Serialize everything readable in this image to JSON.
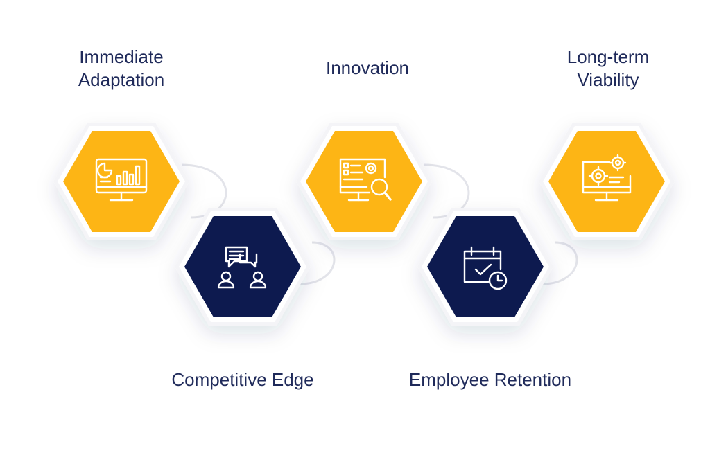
{
  "colors": {
    "accent": "#FDB515",
    "navy": "#0D1A4F",
    "text": "#1F2A5A",
    "connector": "#E3E4EA",
    "halo": "#F4F4F7"
  },
  "steps": [
    {
      "lines": [
        "Immediate",
        "Adaptation"
      ],
      "icon": "analytics-monitor-icon",
      "color": "accent"
    },
    {
      "lines": [
        "Competitive Edge"
      ],
      "icon": "discussion-people-icon",
      "color": "navy"
    },
    {
      "lines": [
        "Innovation"
      ],
      "icon": "research-monitor-icon",
      "color": "accent"
    },
    {
      "lines": [
        "Employee Retention"
      ],
      "icon": "calendar-clock-icon",
      "color": "navy"
    },
    {
      "lines": [
        "Long-term",
        "Viability"
      ],
      "icon": "settings-monitor-icon",
      "color": "accent"
    }
  ]
}
